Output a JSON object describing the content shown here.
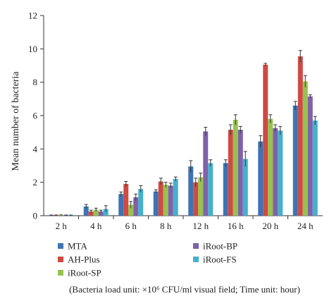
{
  "chart_data": {
    "type": "bar",
    "ylabel": "Mean number of bacteria",
    "ylim": [
      0,
      12
    ],
    "yticks": [
      0,
      2,
      4,
      6,
      8,
      10,
      12
    ],
    "grid": false,
    "legend_position": "bottom",
    "categories": [
      "2 h",
      "4 h",
      "6 h",
      "8 h",
      "12 h",
      "16 h",
      "20 h",
      "24 h"
    ],
    "series": [
      {
        "name": "MTA",
        "color": "#3f73b3",
        "values": [
          0.02,
          0.55,
          1.3,
          1.45,
          2.95,
          3.15,
          4.45,
          6.6
        ],
        "errors": [
          0.02,
          0.12,
          0.12,
          0.1,
          0.35,
          0.2,
          0.35,
          0.25
        ]
      },
      {
        "name": "AH-Plus",
        "color": "#cf4a43",
        "values": [
          0.02,
          0.25,
          1.9,
          2.05,
          2.0,
          5.15,
          9.05,
          9.55
        ],
        "errors": [
          0.02,
          0.08,
          0.15,
          0.2,
          0.25,
          0.3,
          0.08,
          0.35
        ]
      },
      {
        "name": "iRoot-SP",
        "color": "#97c24f",
        "values": [
          0.03,
          0.35,
          0.65,
          1.85,
          2.3,
          5.75,
          5.8,
          8.05
        ],
        "errors": [
          0.02,
          0.1,
          0.2,
          0.15,
          0.25,
          0.3,
          0.25,
          0.35
        ]
      },
      {
        "name": "iRoot-BP",
        "color": "#8061aa",
        "values": [
          0.02,
          0.25,
          1.1,
          1.8,
          5.05,
          5.15,
          5.25,
          7.15
        ],
        "errors": [
          0.02,
          0.08,
          0.2,
          0.15,
          0.25,
          0.2,
          0.2,
          0.1
        ]
      },
      {
        "name": "iRoot-FS",
        "color": "#46b0cc",
        "values": [
          0.02,
          0.4,
          1.6,
          2.2,
          3.15,
          3.4,
          5.1,
          5.7
        ],
        "errors": [
          0.02,
          0.2,
          0.2,
          0.12,
          0.2,
          0.45,
          0.25,
          0.25
        ]
      }
    ],
    "legend_order": [
      "MTA",
      "iRoot-BP",
      "AH-Plus",
      "iRoot-FS",
      "iRoot-SP"
    ],
    "note": "(Bacteria load unit: ×10⁶ CFU/ml visual field; Time unit: hour)"
  }
}
